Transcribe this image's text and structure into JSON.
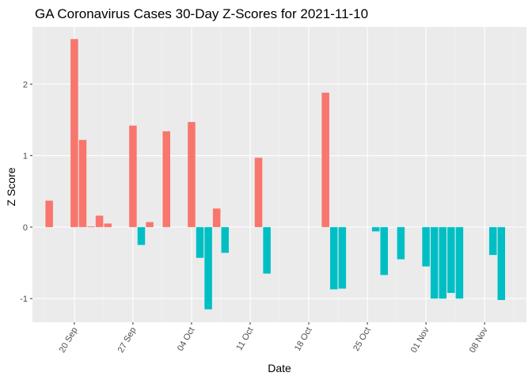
{
  "chart_data": {
    "type": "bar",
    "title": "GA Coronavirus Cases 30-Day Z-Scores for 2021-11-10",
    "xlabel": "Date",
    "ylabel": "Z Score",
    "x_ticks": [
      "20 Sep",
      "27 Sep",
      "04 Oct",
      "11 Oct",
      "18 Oct",
      "25 Oct",
      "01 Nov",
      "08 Nov"
    ],
    "y_ticks": [
      -1,
      0,
      1,
      2
    ],
    "ylim": [
      -1.33,
      2.8
    ],
    "xlim": [
      "2021-09-15",
      "2021-11-13"
    ],
    "grid": true,
    "legend": "none",
    "colors": {
      "positive": "#F8766D",
      "negative": "#00BFC4",
      "panel": "#EBEBEB"
    },
    "points": [
      {
        "date": "2021-09-17",
        "value": 0.37
      },
      {
        "date": "2021-09-20",
        "value": 2.63
      },
      {
        "date": "2021-09-21",
        "value": 1.22
      },
      {
        "date": "2021-09-22",
        "value": 0.01
      },
      {
        "date": "2021-09-23",
        "value": 0.16
      },
      {
        "date": "2021-09-24",
        "value": 0.05
      },
      {
        "date": "2021-09-27",
        "value": 1.42
      },
      {
        "date": "2021-09-28",
        "value": -0.25
      },
      {
        "date": "2021-09-29",
        "value": 0.07
      },
      {
        "date": "2021-10-01",
        "value": 1.34
      },
      {
        "date": "2021-10-04",
        "value": 1.47
      },
      {
        "date": "2021-10-05",
        "value": -0.43
      },
      {
        "date": "2021-10-06",
        "value": -1.15
      },
      {
        "date": "2021-10-07",
        "value": 0.26
      },
      {
        "date": "2021-10-08",
        "value": -0.36
      },
      {
        "date": "2021-10-12",
        "value": 0.97
      },
      {
        "date": "2021-10-13",
        "value": -0.65
      },
      {
        "date": "2021-10-20",
        "value": 1.88
      },
      {
        "date": "2021-10-21",
        "value": -0.87
      },
      {
        "date": "2021-10-22",
        "value": -0.86
      },
      {
        "date": "2021-10-26",
        "value": -0.06
      },
      {
        "date": "2021-10-27",
        "value": -0.67
      },
      {
        "date": "2021-10-29",
        "value": -0.45
      },
      {
        "date": "2021-11-01",
        "value": -0.55
      },
      {
        "date": "2021-11-02",
        "value": -1.0
      },
      {
        "date": "2021-11-03",
        "value": -1.0
      },
      {
        "date": "2021-11-04",
        "value": -0.92
      },
      {
        "date": "2021-11-05",
        "value": -1.0
      },
      {
        "date": "2021-11-09",
        "value": -0.39
      },
      {
        "date": "2021-11-10",
        "value": -1.02
      }
    ]
  }
}
